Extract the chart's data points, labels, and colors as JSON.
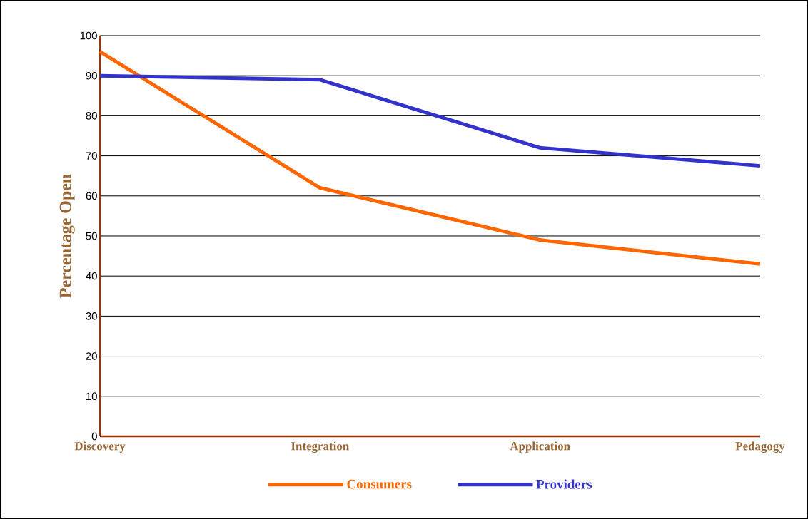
{
  "chart_data": {
    "type": "line",
    "categories": [
      "Discovery",
      "Integration",
      "Application",
      "Pedagogy"
    ],
    "series": [
      {
        "name": "Consumers",
        "color": "#ff6600",
        "values": [
          96,
          62,
          49,
          43
        ]
      },
      {
        "name": "Providers",
        "color": "#3333cc",
        "values": [
          90,
          89,
          72,
          67.5
        ]
      }
    ],
    "ylabel": "Percentage Open",
    "ylim": [
      0,
      100
    ],
    "yticks": [
      0,
      10,
      20,
      30,
      40,
      50,
      60,
      70,
      80,
      90,
      100
    ],
    "grid": "y",
    "legend": "bottom"
  }
}
